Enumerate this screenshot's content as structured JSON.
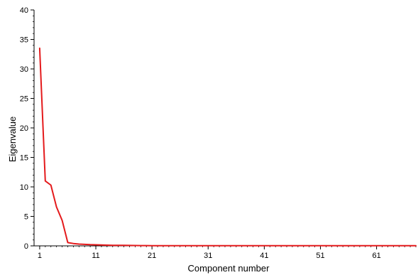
{
  "chart_data": {
    "type": "line",
    "title": "",
    "xlabel": "Component number",
    "ylabel": "Eigenvalue",
    "xlim": [
      0,
      68
    ],
    "ylim": [
      0,
      40
    ],
    "x_ticks": [
      1,
      11,
      21,
      31,
      41,
      51,
      61
    ],
    "y_ticks": [
      0,
      5,
      10,
      15,
      20,
      25,
      30,
      35,
      40
    ],
    "x_minor_step": 1,
    "y_minor_step": 1,
    "grid": false,
    "series": [
      {
        "color": "#e41a1c",
        "x": [
          1,
          2,
          3,
          4,
          5,
          6,
          7,
          8,
          9,
          10,
          11,
          12,
          13,
          14,
          15,
          16,
          17,
          18,
          19,
          20,
          21,
          22,
          23,
          24,
          25,
          26,
          27,
          28,
          29,
          30,
          31,
          32,
          33,
          34,
          35,
          36,
          37,
          38,
          39,
          40,
          41,
          42,
          43,
          44,
          45,
          46,
          47,
          48,
          49,
          50,
          51,
          52,
          53,
          54,
          55,
          56,
          57,
          58,
          59,
          60,
          61,
          62,
          63,
          64,
          65,
          66,
          67,
          68
        ],
        "y": [
          33.5,
          11.0,
          10.3,
          6.6,
          4.3,
          0.55,
          0.4,
          0.3,
          0.25,
          0.2,
          0.18,
          0.15,
          0.12,
          0.1,
          0.09,
          0.08,
          0.07,
          0.06,
          0.05,
          0.05,
          0.04,
          0.04,
          0.03,
          0.03,
          0.03,
          0.03,
          0.02,
          0.02,
          0.02,
          0.02,
          0.02,
          0.02,
          0.02,
          0.02,
          0.02,
          0.02,
          0.02,
          0.02,
          0.02,
          0.02,
          0.02,
          0.02,
          0.02,
          0.02,
          0.02,
          0.02,
          0.02,
          0.02,
          0.02,
          0.02,
          0.02,
          0.02,
          0.02,
          0.02,
          0.02,
          0.02,
          0.02,
          0.02,
          0.02,
          0.02,
          0.02,
          0.02,
          0.02,
          0.02,
          0.02,
          0.02,
          0.02,
          0.02
        ]
      }
    ]
  }
}
